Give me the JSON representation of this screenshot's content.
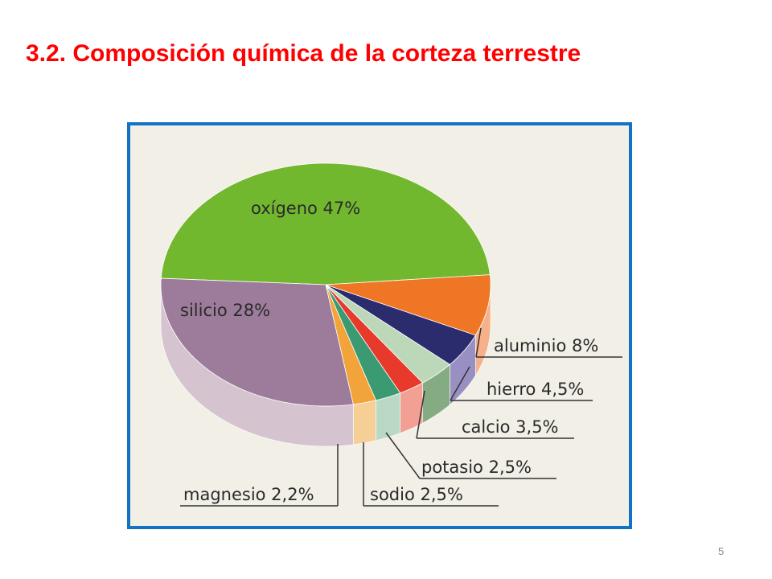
{
  "slide": {
    "title": "3.2. Composición química de la corteza terrestre",
    "page_number": "5"
  },
  "chart_data": {
    "type": "pie",
    "title": "",
    "slices": [
      {
        "name": "oxígeno",
        "value": 47,
        "label": "oxígeno 47%",
        "color": "#72b82f",
        "side": "#5c9a24"
      },
      {
        "name": "aluminio",
        "value": 8,
        "label": "aluminio 8%",
        "color": "#ef7624",
        "side": "#f6b08a"
      },
      {
        "name": "hierro",
        "value": 4.5,
        "label": "hierro 4,5%",
        "color": "#2b2c6e",
        "side": "#9890c3"
      },
      {
        "name": "calcio",
        "value": 3.5,
        "label": "calcio 3,5%",
        "color": "#bcd8b8",
        "side": "#84ab82"
      },
      {
        "name": "potasio",
        "value": 2.5,
        "label": "potasio 2,5%",
        "color": "#e73a2c",
        "side": "#f2a093"
      },
      {
        "name": "sodio",
        "value": 2.5,
        "label": "sodio 2,5%",
        "color": "#3b9a72",
        "side": "#b9d9c4"
      },
      {
        "name": "magnesio",
        "value": 2.2,
        "label": "magnesio 2,2%",
        "color": "#f2a43b",
        "side": "#f6cf96"
      },
      {
        "name": "silicio",
        "value": 28,
        "label": "silicio 28%",
        "color": "#9c7c9a",
        "side": "#d6c3d0"
      }
    ]
  }
}
